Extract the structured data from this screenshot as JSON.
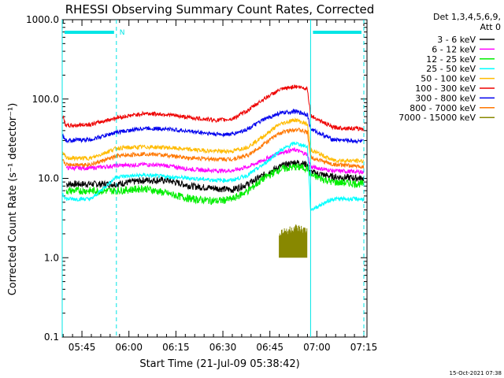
{
  "chart_data": {
    "type": "line",
    "title": "RHESSI Observing Summary Count Rates, Corrected",
    "xlabel": "Start Time (21-Jul-09 05:38:42)",
    "ylabel": "Corrected Count Rate (s⁻¹ detector⁻¹)",
    "y_scale": "log",
    "ylim": [
      0.1,
      1000.0
    ],
    "xlim": [
      "05:38:42",
      "07:16:00"
    ],
    "x_tick_labels": [
      "05:45",
      "06:00",
      "06:15",
      "06:30",
      "06:45",
      "07:00",
      "07:15"
    ],
    "y_tick_labels": [
      "0.1",
      "1.0",
      "10.0",
      "100.0",
      "1000.0"
    ],
    "legend": {
      "header": [
        "Det 1,3,4,5,6,9,",
        "Att 0"
      ],
      "placement": "right"
    },
    "x_knots": [
      "05:38:42",
      "05:40",
      "05:48",
      "05:56",
      "06:05",
      "06:12",
      "06:20",
      "06:28",
      "06:33",
      "06:38",
      "06:43",
      "06:48",
      "06:53",
      "06:57",
      "06:58",
      "07:05",
      "07:15"
    ],
    "series": [
      {
        "name": "3 - 6 keV",
        "color": "#000000",
        "values": [
          null,
          null,
          8.5,
          8.5,
          9.5,
          9.5,
          8,
          7.5,
          7.2,
          8.5,
          11,
          14,
          16,
          15,
          12,
          10.5,
          10
        ]
      },
      {
        "name": "6 - 12 keV",
        "color": "#ff00ff",
        "values": [
          null,
          null,
          13.5,
          14.5,
          15,
          14.5,
          13,
          12.5,
          12.5,
          14,
          17,
          21,
          23,
          20,
          14,
          12.5,
          12
        ]
      },
      {
        "name": "12 - 25 keV",
        "color": "#00ee00",
        "values": [
          null,
          null,
          7,
          7,
          7.5,
          6.5,
          5.5,
          5.2,
          5.5,
          7,
          10,
          13,
          14,
          13.5,
          11,
          9,
          8.5
        ]
      },
      {
        "name": "25 - 50 keV",
        "color": "#00ffff",
        "values": [
          6.5,
          5.5,
          5.5,
          10.5,
          11,
          10.5,
          10,
          9.5,
          9.5,
          11,
          15,
          22,
          28,
          25,
          4,
          5.5,
          5.5
        ]
      },
      {
        "name": "50 - 100 keV",
        "color": "#ffbb00",
        "values": [
          21,
          18,
          18,
          24,
          25,
          24.5,
          23,
          22,
          22,
          25,
          34,
          48,
          55,
          48,
          23,
          17,
          16.5
        ]
      },
      {
        "name": "100 - 300 keV",
        "color": "#ee0000",
        "values": [
          62,
          46,
          48,
          58,
          66,
          64,
          58,
          54,
          56,
          72,
          100,
          130,
          145,
          135,
          62,
          44,
          42
        ]
      },
      {
        "name": "300 - 800 keV",
        "color": "#0000ee",
        "values": [
          35,
          30,
          31,
          38,
          43,
          42,
          39,
          36,
          36,
          42,
          55,
          66,
          70,
          64,
          42,
          31,
          29
        ]
      },
      {
        "name": "800 - 7000 keV",
        "color": "#ff7700",
        "values": [
          17,
          15,
          15,
          19,
          20.5,
          19.5,
          18,
          17.5,
          17.5,
          19.5,
          27,
          37,
          42,
          38,
          18.5,
          15,
          14
        ]
      },
      {
        "name": "7000 - 15000 keV",
        "color": "#888800",
        "values": [
          null,
          null,
          null,
          null,
          null,
          null,
          null,
          null,
          null,
          null,
          null,
          2.0,
          2.3,
          2.1,
          null,
          null,
          null
        ]
      }
    ],
    "annotations": {
      "night_marker": "N",
      "cyan_bars": [
        [
          "05:38:42",
          "05:56"
        ],
        [
          "06:58",
          "07:15"
        ]
      ],
      "dashed_lines": [
        "05:56",
        "07:15"
      ],
      "solid_lines": [
        "05:38:42",
        "06:58"
      ]
    }
  },
  "footer": {
    "timestamp": "15-Oct-2021 07:38"
  },
  "colors": {
    "background": "#ffffff",
    "axes": "#000000",
    "annotation": "#00e5e5"
  }
}
